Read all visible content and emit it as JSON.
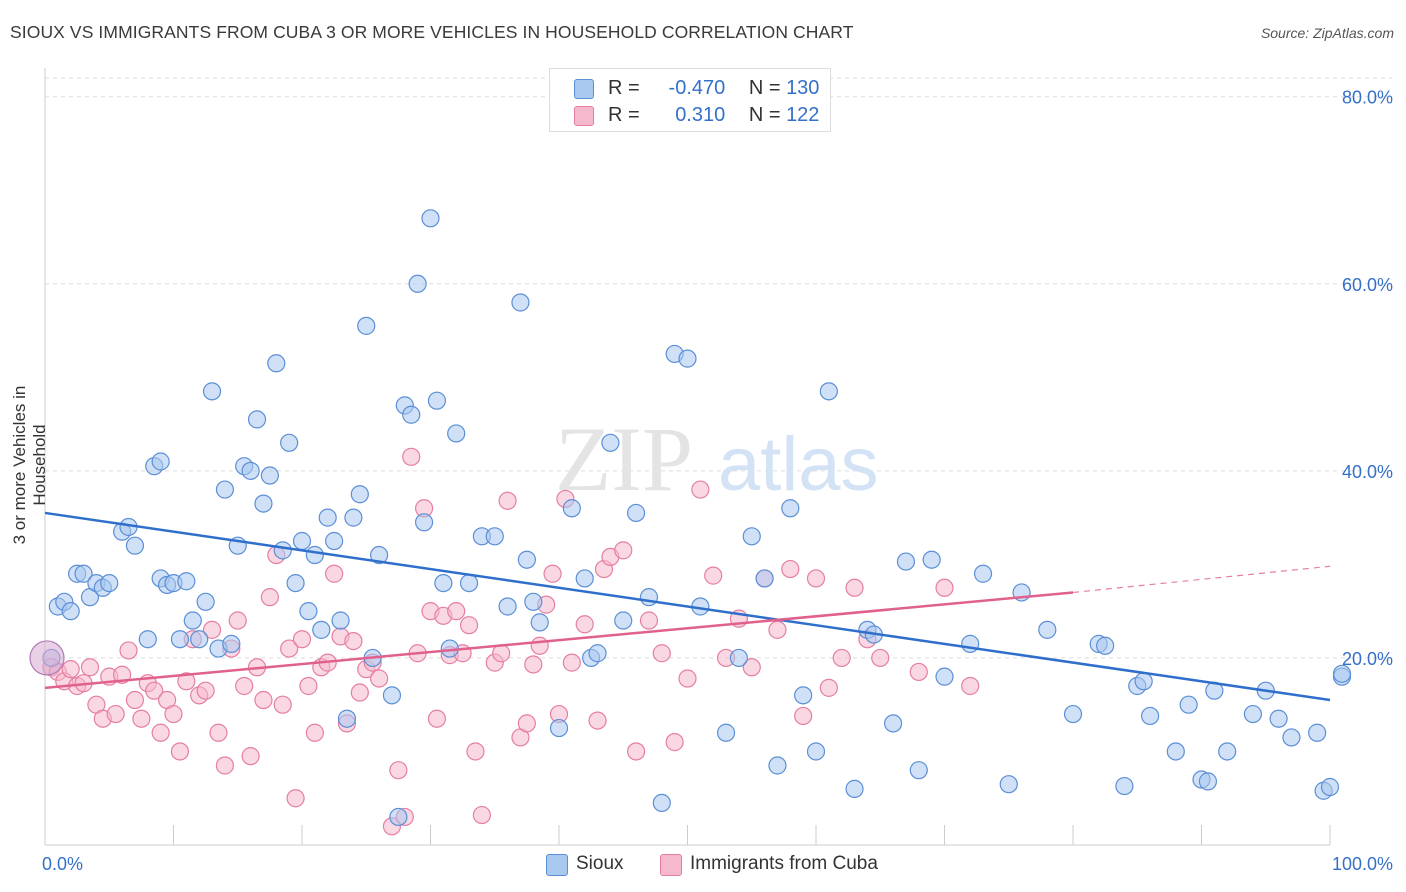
{
  "title": "SIOUX VS IMMIGRANTS FROM CUBA 3 OR MORE VEHICLES IN HOUSEHOLD CORRELATION CHART",
  "source": "Source: ZipAtlas.com",
  "watermark": {
    "zip": "ZIP",
    "atlas": "atlas"
  },
  "legend": {
    "sioux": {
      "r_label": "R =",
      "r_value": "-0.470",
      "n_label": "N =",
      "n_value": "130"
    },
    "cuba": {
      "r_label": "R =",
      "r_value": "0.310",
      "n_label": "N =",
      "n_value": "122"
    }
  },
  "colors": {
    "sioux_fill": "#a9c8f0",
    "sioux_stroke": "#5b8fd6",
    "sioux_line": "#2f6fcc",
    "cuba_fill": "#f6b8cc",
    "cuba_stroke": "#e57fa1",
    "cuba_line": "#e0608e",
    "value_text": "#3570c8",
    "grid": "#dddddd"
  },
  "chart_data": {
    "type": "scatter",
    "xlabel": "",
    "ylabel": "3 or more Vehicles in Household",
    "xlim": [
      0,
      100
    ],
    "ylim": [
      0,
      82
    ],
    "x_tick_labels": [
      "0.0%",
      "100.0%"
    ],
    "y_ticks": [
      20,
      40,
      60,
      80
    ],
    "y_tick_labels": [
      "20.0%",
      "40.0%",
      "60.0%",
      "80.0%"
    ],
    "grid": true,
    "series": [
      {
        "name": "Sioux",
        "trend": {
          "x": [
            0,
            100
          ],
          "y": [
            35.5,
            15.5
          ]
        },
        "points": [
          [
            0.5,
            20
          ],
          [
            1,
            25.5
          ],
          [
            1.5,
            26
          ],
          [
            2,
            25
          ],
          [
            2.5,
            29
          ],
          [
            3,
            29
          ],
          [
            3.5,
            26.5
          ],
          [
            4,
            28
          ],
          [
            4.5,
            27.5
          ],
          [
            5,
            28
          ],
          [
            6,
            33.5
          ],
          [
            6.5,
            34
          ],
          [
            7,
            32
          ],
          [
            8,
            22
          ],
          [
            8.5,
            40.5
          ],
          [
            9,
            41
          ],
          [
            9,
            28.5
          ],
          [
            9.5,
            27.8
          ],
          [
            10,
            28
          ],
          [
            10.5,
            22
          ],
          [
            11,
            28.2
          ],
          [
            11.5,
            24
          ],
          [
            12,
            22
          ],
          [
            12.5,
            26
          ],
          [
            13,
            48.5
          ],
          [
            13.5,
            21
          ],
          [
            14,
            38
          ],
          [
            14.5,
            21.5
          ],
          [
            15,
            32
          ],
          [
            15.5,
            40.5
          ],
          [
            16,
            40
          ],
          [
            16.5,
            45.5
          ],
          [
            17,
            36.5
          ],
          [
            17.5,
            39.5
          ],
          [
            18,
            51.5
          ],
          [
            18.5,
            31.5
          ],
          [
            19,
            43
          ],
          [
            19.5,
            28
          ],
          [
            20,
            32.5
          ],
          [
            20.5,
            25
          ],
          [
            21,
            31
          ],
          [
            21.5,
            23
          ],
          [
            22,
            35
          ],
          [
            22.5,
            32.5
          ],
          [
            23,
            24
          ],
          [
            23.5,
            13.5
          ],
          [
            24,
            35
          ],
          [
            24.5,
            37.5
          ],
          [
            25,
            55.5
          ],
          [
            25.5,
            20
          ],
          [
            26,
            31
          ],
          [
            27,
            16
          ],
          [
            27.5,
            3
          ],
          [
            28,
            47
          ],
          [
            28.5,
            46
          ],
          [
            29,
            60
          ],
          [
            29.5,
            34.5
          ],
          [
            30,
            67
          ],
          [
            30.5,
            47.5
          ],
          [
            31,
            28
          ],
          [
            31.5,
            21
          ],
          [
            32,
            44
          ],
          [
            33,
            28
          ],
          [
            34,
            33
          ],
          [
            35,
            33
          ],
          [
            36,
            25.5
          ],
          [
            37,
            58
          ],
          [
            37.5,
            30.5
          ],
          [
            38,
            26
          ],
          [
            38.5,
            23.8
          ],
          [
            40,
            12.5
          ],
          [
            41,
            36
          ],
          [
            42,
            28.5
          ],
          [
            42.5,
            20
          ],
          [
            43,
            20.5
          ],
          [
            44,
            43
          ],
          [
            45,
            24
          ],
          [
            46,
            35.5
          ],
          [
            47,
            26.5
          ],
          [
            48,
            4.5
          ],
          [
            49,
            52.5
          ],
          [
            50,
            52
          ],
          [
            51,
            25.5
          ],
          [
            53,
            12
          ],
          [
            54,
            20
          ],
          [
            55,
            33
          ],
          [
            56,
            28.5
          ],
          [
            57,
            8.5
          ],
          [
            58,
            36
          ],
          [
            59,
            16
          ],
          [
            60,
            10
          ],
          [
            61,
            48.5
          ],
          [
            63,
            6
          ],
          [
            64,
            23
          ],
          [
            64.5,
            22.5
          ],
          [
            66,
            13
          ],
          [
            67,
            30.3
          ],
          [
            68,
            8
          ],
          [
            69,
            30.5
          ],
          [
            70,
            18
          ],
          [
            72,
            21.5
          ],
          [
            73,
            29
          ],
          [
            75,
            6.5
          ],
          [
            76,
            27
          ],
          [
            78,
            23
          ],
          [
            80,
            14
          ],
          [
            82,
            21.5
          ],
          [
            82.5,
            21.3
          ],
          [
            84,
            6.3
          ],
          [
            85,
            17
          ],
          [
            85.5,
            17.5
          ],
          [
            86,
            13.8
          ],
          [
            88,
            10
          ],
          [
            89,
            15
          ],
          [
            90,
            7
          ],
          [
            90.5,
            6.8
          ],
          [
            91,
            16.5
          ],
          [
            92,
            10
          ],
          [
            94,
            14
          ],
          [
            95,
            16.5
          ],
          [
            96,
            13.5
          ],
          [
            97,
            11.5
          ],
          [
            99,
            12
          ],
          [
            99.5,
            5.8
          ],
          [
            100,
            6.2
          ],
          [
            101,
            18
          ],
          [
            102,
            18.3
          ]
        ]
      },
      {
        "name": "Immigrants from Cuba",
        "trend": {
          "x": [
            0,
            80
          ],
          "y": [
            16.8,
            27
          ]
        },
        "trend_dashed": {
          "x": [
            80,
            100
          ],
          "y": [
            27,
            29.8
          ]
        },
        "points": [
          [
            0.5,
            19
          ],
          [
            1,
            18.5
          ],
          [
            1.5,
            17.5
          ],
          [
            2,
            18.8
          ],
          [
            2.5,
            17
          ],
          [
            3,
            17.3
          ],
          [
            3.5,
            19
          ],
          [
            4,
            15
          ],
          [
            4.5,
            13.5
          ],
          [
            5,
            18
          ],
          [
            5.5,
            14
          ],
          [
            6,
            18.2
          ],
          [
            6.5,
            20.8
          ],
          [
            7,
            15.5
          ],
          [
            7.5,
            13.5
          ],
          [
            8,
            17.3
          ],
          [
            8.5,
            16.5
          ],
          [
            9,
            12
          ],
          [
            9.5,
            15.5
          ],
          [
            10,
            14
          ],
          [
            10.5,
            10
          ],
          [
            11,
            17.5
          ],
          [
            11.5,
            22
          ],
          [
            12,
            16
          ],
          [
            12.5,
            16.5
          ],
          [
            13,
            23
          ],
          [
            13.5,
            12
          ],
          [
            14,
            8.5
          ],
          [
            14.5,
            21
          ],
          [
            15,
            24
          ],
          [
            15.5,
            17
          ],
          [
            16,
            9.5
          ],
          [
            16.5,
            19
          ],
          [
            17,
            15.5
          ],
          [
            17.5,
            26.5
          ],
          [
            18,
            31
          ],
          [
            18.5,
            15
          ],
          [
            19,
            21
          ],
          [
            19.5,
            5
          ],
          [
            20,
            22
          ],
          [
            20.5,
            17
          ],
          [
            21,
            12
          ],
          [
            21.5,
            19
          ],
          [
            22,
            19.5
          ],
          [
            22.5,
            29
          ],
          [
            23,
            22.3
          ],
          [
            23.5,
            13
          ],
          [
            24,
            21.8
          ],
          [
            24.5,
            16.3
          ],
          [
            25,
            18.8
          ],
          [
            25.5,
            19.5
          ],
          [
            26,
            17.8
          ],
          [
            27,
            2
          ],
          [
            27.5,
            8
          ],
          [
            28,
            3
          ],
          [
            28.5,
            41.5
          ],
          [
            29,
            20.5
          ],
          [
            29.5,
            36
          ],
          [
            30,
            25
          ],
          [
            30.5,
            13.5
          ],
          [
            31,
            24.5
          ],
          [
            31.5,
            20.3
          ],
          [
            32,
            25
          ],
          [
            32.5,
            20.5
          ],
          [
            33,
            23.5
          ],
          [
            33.5,
            10
          ],
          [
            34,
            3.2
          ],
          [
            35,
            19.5
          ],
          [
            35.5,
            20.5
          ],
          [
            36,
            36.8
          ],
          [
            37,
            11.5
          ],
          [
            37.5,
            13
          ],
          [
            38,
            19.3
          ],
          [
            38.5,
            21.3
          ],
          [
            39,
            25.7
          ],
          [
            39.5,
            29
          ],
          [
            40,
            14
          ],
          [
            40.5,
            37
          ],
          [
            41,
            19.5
          ],
          [
            42,
            23.6
          ],
          [
            43,
            13.3
          ],
          [
            43.5,
            29.5
          ],
          [
            44,
            30.8
          ],
          [
            45,
            31.5
          ],
          [
            46,
            10
          ],
          [
            47,
            24
          ],
          [
            48,
            20.5
          ],
          [
            49,
            11
          ],
          [
            50,
            17.8
          ],
          [
            51,
            38
          ],
          [
            52,
            28.8
          ],
          [
            53,
            20
          ],
          [
            54,
            24.2
          ],
          [
            55,
            19
          ],
          [
            56,
            28.5
          ],
          [
            57,
            23
          ],
          [
            58,
            29.5
          ],
          [
            59,
            13.8
          ],
          [
            60,
            28.5
          ],
          [
            61,
            16.8
          ],
          [
            62,
            20
          ],
          [
            63,
            27.5
          ],
          [
            64,
            22
          ],
          [
            65,
            20
          ],
          [
            68,
            18.5
          ],
          [
            70,
            27.5
          ],
          [
            72,
            17
          ]
        ]
      }
    ]
  },
  "bottom_legend": {
    "sioux": "Sioux",
    "cuba": "Immigrants from Cuba"
  }
}
